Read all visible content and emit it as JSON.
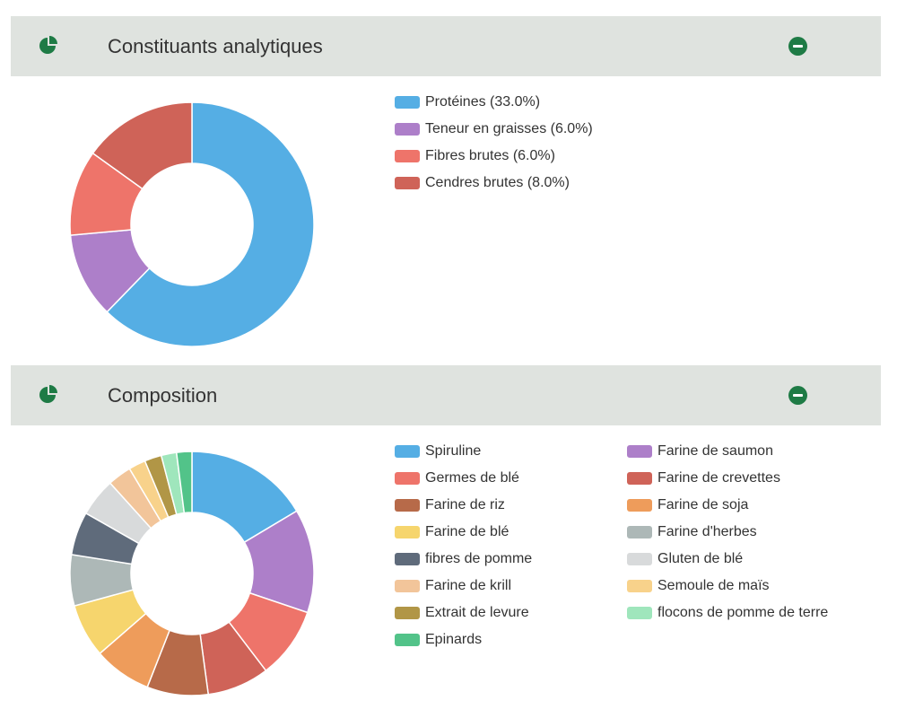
{
  "theme": {
    "icon_color": "#1e7b45",
    "header_bg": "#dfe3df"
  },
  "panels": [
    {
      "title": "Constituants analytiques",
      "icon": "pie-chart-icon",
      "collapse_icon": "minus-circle-icon"
    },
    {
      "title": "Composition",
      "icon": "pie-chart-icon",
      "collapse_icon": "minus-circle-icon"
    }
  ],
  "chart_data": [
    {
      "type": "pie",
      "donut": true,
      "legend_placement": "right",
      "categories": [
        "Protéines (33.0%)",
        "Teneur en graisses (6.0%)",
        "Fibres brutes (6.0%)",
        "Cendres brutes (8.0%)"
      ],
      "values": [
        33.0,
        6.0,
        6.0,
        8.0
      ],
      "colors": [
        "#55aee4",
        "#ad7fc9",
        "#ee746a",
        "#cf6358"
      ]
    },
    {
      "type": "pie",
      "donut": true,
      "legend_placement": "right",
      "categories": [
        "Spiruline",
        "Farine de saumon",
        "Germes de blé",
        "Farine de crevettes",
        "Farine de riz",
        "Farine de soja",
        "Farine de blé",
        "Farine d'herbes",
        "fibres de pomme",
        "Gluten de blé",
        "Farine de krill",
        "Semoule de maïs",
        "Extrait de levure",
        "flocons de pomme de terre",
        "Epinards"
      ],
      "values": [
        14.6,
        12.2,
        8.4,
        7.3,
        7.2,
        6.8,
        6.3,
        6.0,
        5.1,
        4.5,
        2.8,
        2.0,
        2.0,
        1.8,
        1.8
      ],
      "colors": [
        "#55aee4",
        "#ad7fc9",
        "#ee746a",
        "#cf6358",
        "#b76a49",
        "#ee9c5b",
        "#f6d56d",
        "#adb8b7",
        "#5f6b7b",
        "#d8dadb",
        "#f2c59a",
        "#f8d28b",
        "#b19646",
        "#9fe6bc",
        "#52c389"
      ]
    }
  ]
}
